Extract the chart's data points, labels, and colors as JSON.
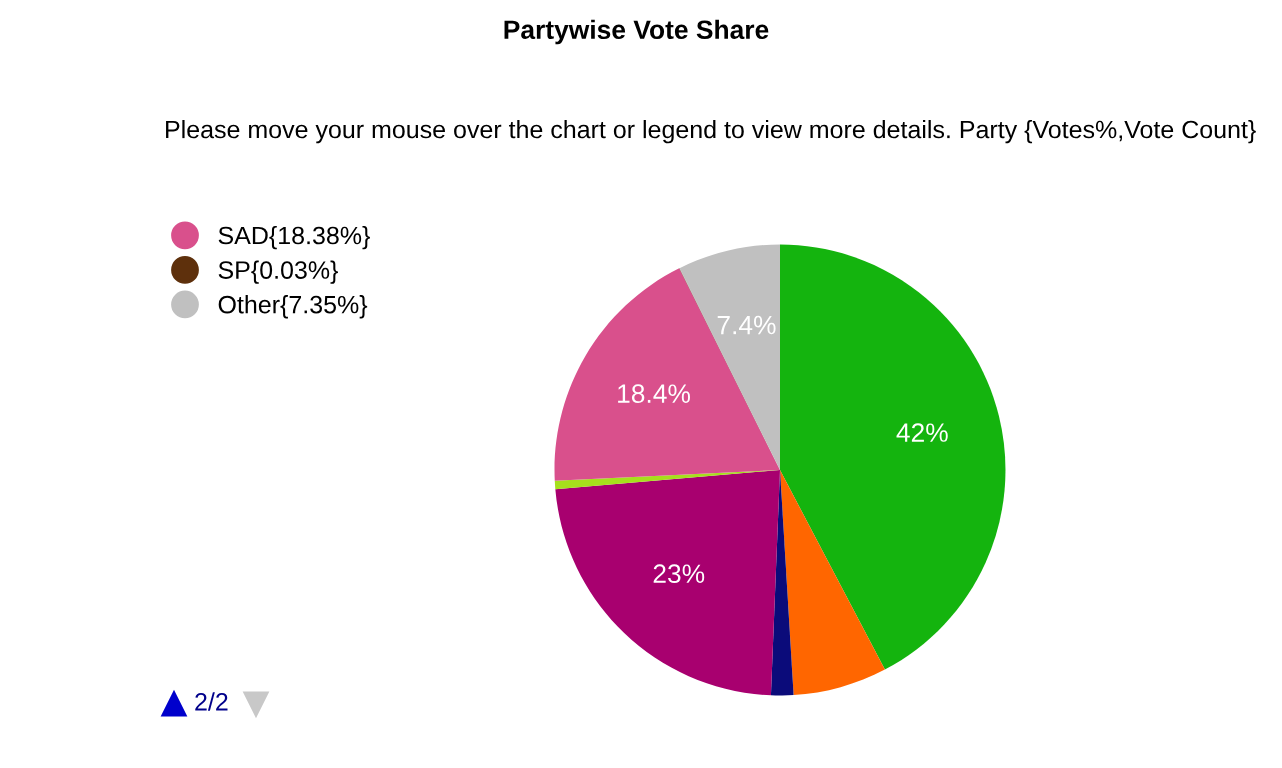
{
  "chart_data": {
    "type": "pie",
    "title": "Partywise Vote Share",
    "subtitle": "Please move your mouse over the chart or legend to view more details. Party {Votes%,Vote Count}",
    "categories": [
      null,
      null,
      null,
      null,
      null,
      "SAD{18.38%}",
      "SP{0.03%}",
      "Other{7.35%}"
    ],
    "values": [
      42.3,
      6.74,
      1.6,
      23,
      0.6,
      18.38,
      0.03,
      7.35
    ],
    "colors": [
      "#14b40e",
      "#ff6600",
      "#0b0b7a",
      "#a8006f",
      "#a6e01c",
      "#d9508c",
      "#5e300c",
      "#c0c0c0"
    ],
    "value_labels": [
      "42%",
      null,
      null,
      "23%",
      null,
      "18.4%",
      null,
      "7.4%"
    ],
    "legend": "left",
    "annotations": [
      "2/2"
    ]
  }
}
